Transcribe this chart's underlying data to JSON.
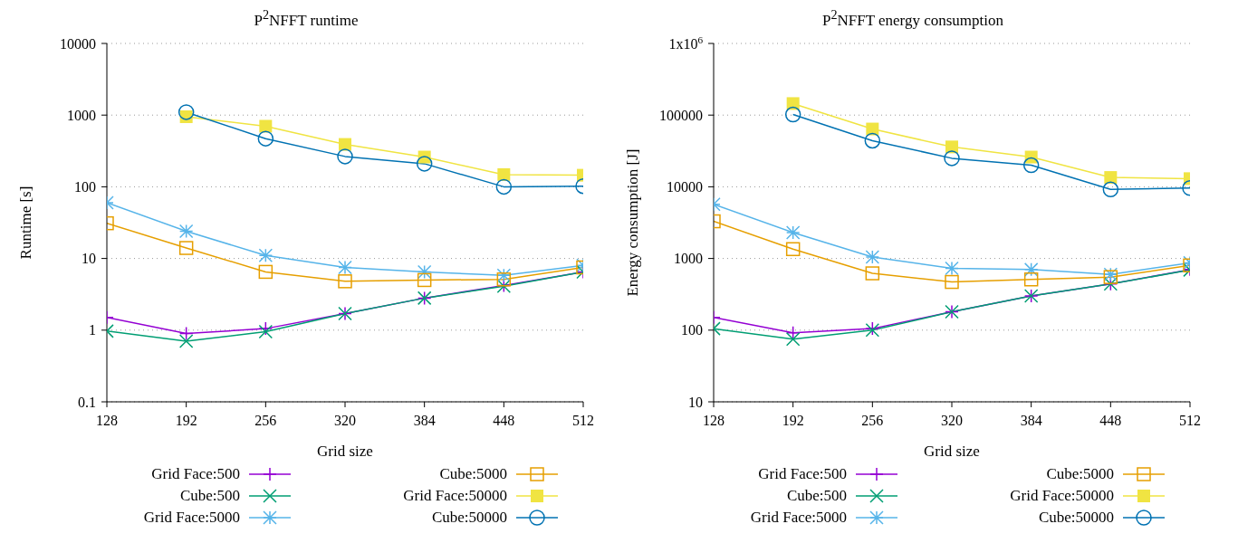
{
  "chart_data": [
    {
      "type": "line",
      "title": "P$^{2}$NFFT runtime",
      "xlabel": "Grid size",
      "ylabel": "Runtime [s]",
      "x": [
        128,
        192,
        256,
        320,
        384,
        448,
        512
      ],
      "xlim": [
        128,
        512
      ],
      "xticks": [
        128,
        192,
        256,
        320,
        384,
        448,
        512
      ],
      "ylim": [
        0.1,
        10000
      ],
      "yticks": [
        0.1,
        1,
        10,
        100,
        1000,
        10000
      ],
      "log": "y",
      "grid": "y",
      "legend": "bottom",
      "line_style": "solid",
      "series": [
        {
          "name": "Grid Face:500",
          "color": "#9400d3",
          "marker": "plus",
          "values": [
            1.5,
            0.9,
            1.05,
            1.7,
            2.8,
            4.2,
            6.5
          ]
        },
        {
          "name": "Cube:500",
          "color": "#009e73",
          "marker": "x",
          "values": [
            0.97,
            0.7,
            0.95,
            1.7,
            2.8,
            4.1,
            6.5
          ]
        },
        {
          "name": "Grid Face:5000",
          "color": "#56b4e9",
          "marker": "cross",
          "values": [
            60,
            24,
            11,
            7.5,
            6.5,
            5.8,
            8
          ]
        },
        {
          "name": "Cube:5000",
          "color": "#e69f00",
          "marker": "square-open",
          "values": [
            31,
            14,
            6.5,
            4.8,
            5,
            5.1,
            7.5
          ]
        },
        {
          "name": "Grid Face:50000",
          "color": "#f0e442",
          "marker": "square",
          "values": [
            null,
            950,
            700,
            390,
            260,
            148,
            145
          ]
        },
        {
          "name": "Cube:50000",
          "color": "#0072b2",
          "marker": "circle-open",
          "values": [
            null,
            1100,
            470,
            265,
            210,
            100,
            102
          ]
        }
      ]
    },
    {
      "type": "line",
      "title": "P$^{2}$NFFT energy consumption",
      "xlabel": "Grid size",
      "ylabel": "Energy consumption [J]",
      "x": [
        128,
        192,
        256,
        320,
        384,
        448,
        512
      ],
      "xlim": [
        128,
        512
      ],
      "xticks": [
        128,
        192,
        256,
        320,
        384,
        448,
        512
      ],
      "ylim": [
        10,
        1000000
      ],
      "yticks": [
        10,
        100,
        1000,
        10000,
        100000,
        {
          "value": 1000000,
          "label": "1x10$^{6}$"
        }
      ],
      "log": "y",
      "grid": "y",
      "legend": "bottom",
      "line_style": "solid",
      "series": [
        {
          "name": "Grid Face:500",
          "color": "#9400d3",
          "marker": "plus",
          "values": [
            150,
            92,
            105,
            180,
            300,
            440,
            700
          ]
        },
        {
          "name": "Cube:500",
          "color": "#009e73",
          "marker": "x",
          "values": [
            105,
            75,
            100,
            180,
            300,
            440,
            690
          ]
        },
        {
          "name": "Grid Face:5000",
          "color": "#56b4e9",
          "marker": "cross",
          "values": [
            5700,
            2300,
            1050,
            730,
            700,
            600,
            870
          ]
        },
        {
          "name": "Cube:5000",
          "color": "#e69f00",
          "marker": "square-open",
          "values": [
            3300,
            1350,
            620,
            470,
            510,
            550,
            800
          ]
        },
        {
          "name": "Grid Face:50000",
          "color": "#f0e442",
          "marker": "square",
          "values": [
            null,
            145000,
            64000,
            36000,
            26000,
            13500,
            13000
          ]
        },
        {
          "name": "Cube:50000",
          "color": "#0072b2",
          "marker": "circle-open",
          "values": [
            null,
            102000,
            44000,
            25000,
            20000,
            9200,
            9600
          ]
        }
      ]
    }
  ]
}
